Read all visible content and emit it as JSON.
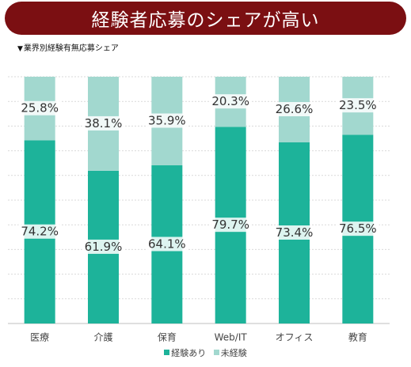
{
  "title": "経験者応募のシェアが高い",
  "subtitle": "業界別経験有無応募シェア",
  "subtitle_marker": "▼",
  "colors": {
    "experienced": "#1db39a",
    "inexperienced": "#a2d8cf",
    "banner": "#7b0f12"
  },
  "chart_data": {
    "type": "bar",
    "stacked": true,
    "percent": true,
    "categories": [
      "医療",
      "介護",
      "保育",
      "Web/IT",
      "オフィス",
      "教育"
    ],
    "series": [
      {
        "name": "経験あり",
        "values": [
          74.2,
          61.9,
          64.1,
          79.7,
          73.4,
          76.5
        ]
      },
      {
        "name": "未経験",
        "values": [
          25.8,
          38.1,
          35.9,
          20.3,
          26.6,
          23.5
        ]
      }
    ],
    "ylim": [
      0,
      100
    ],
    "grid": true,
    "legend": "bottom"
  }
}
